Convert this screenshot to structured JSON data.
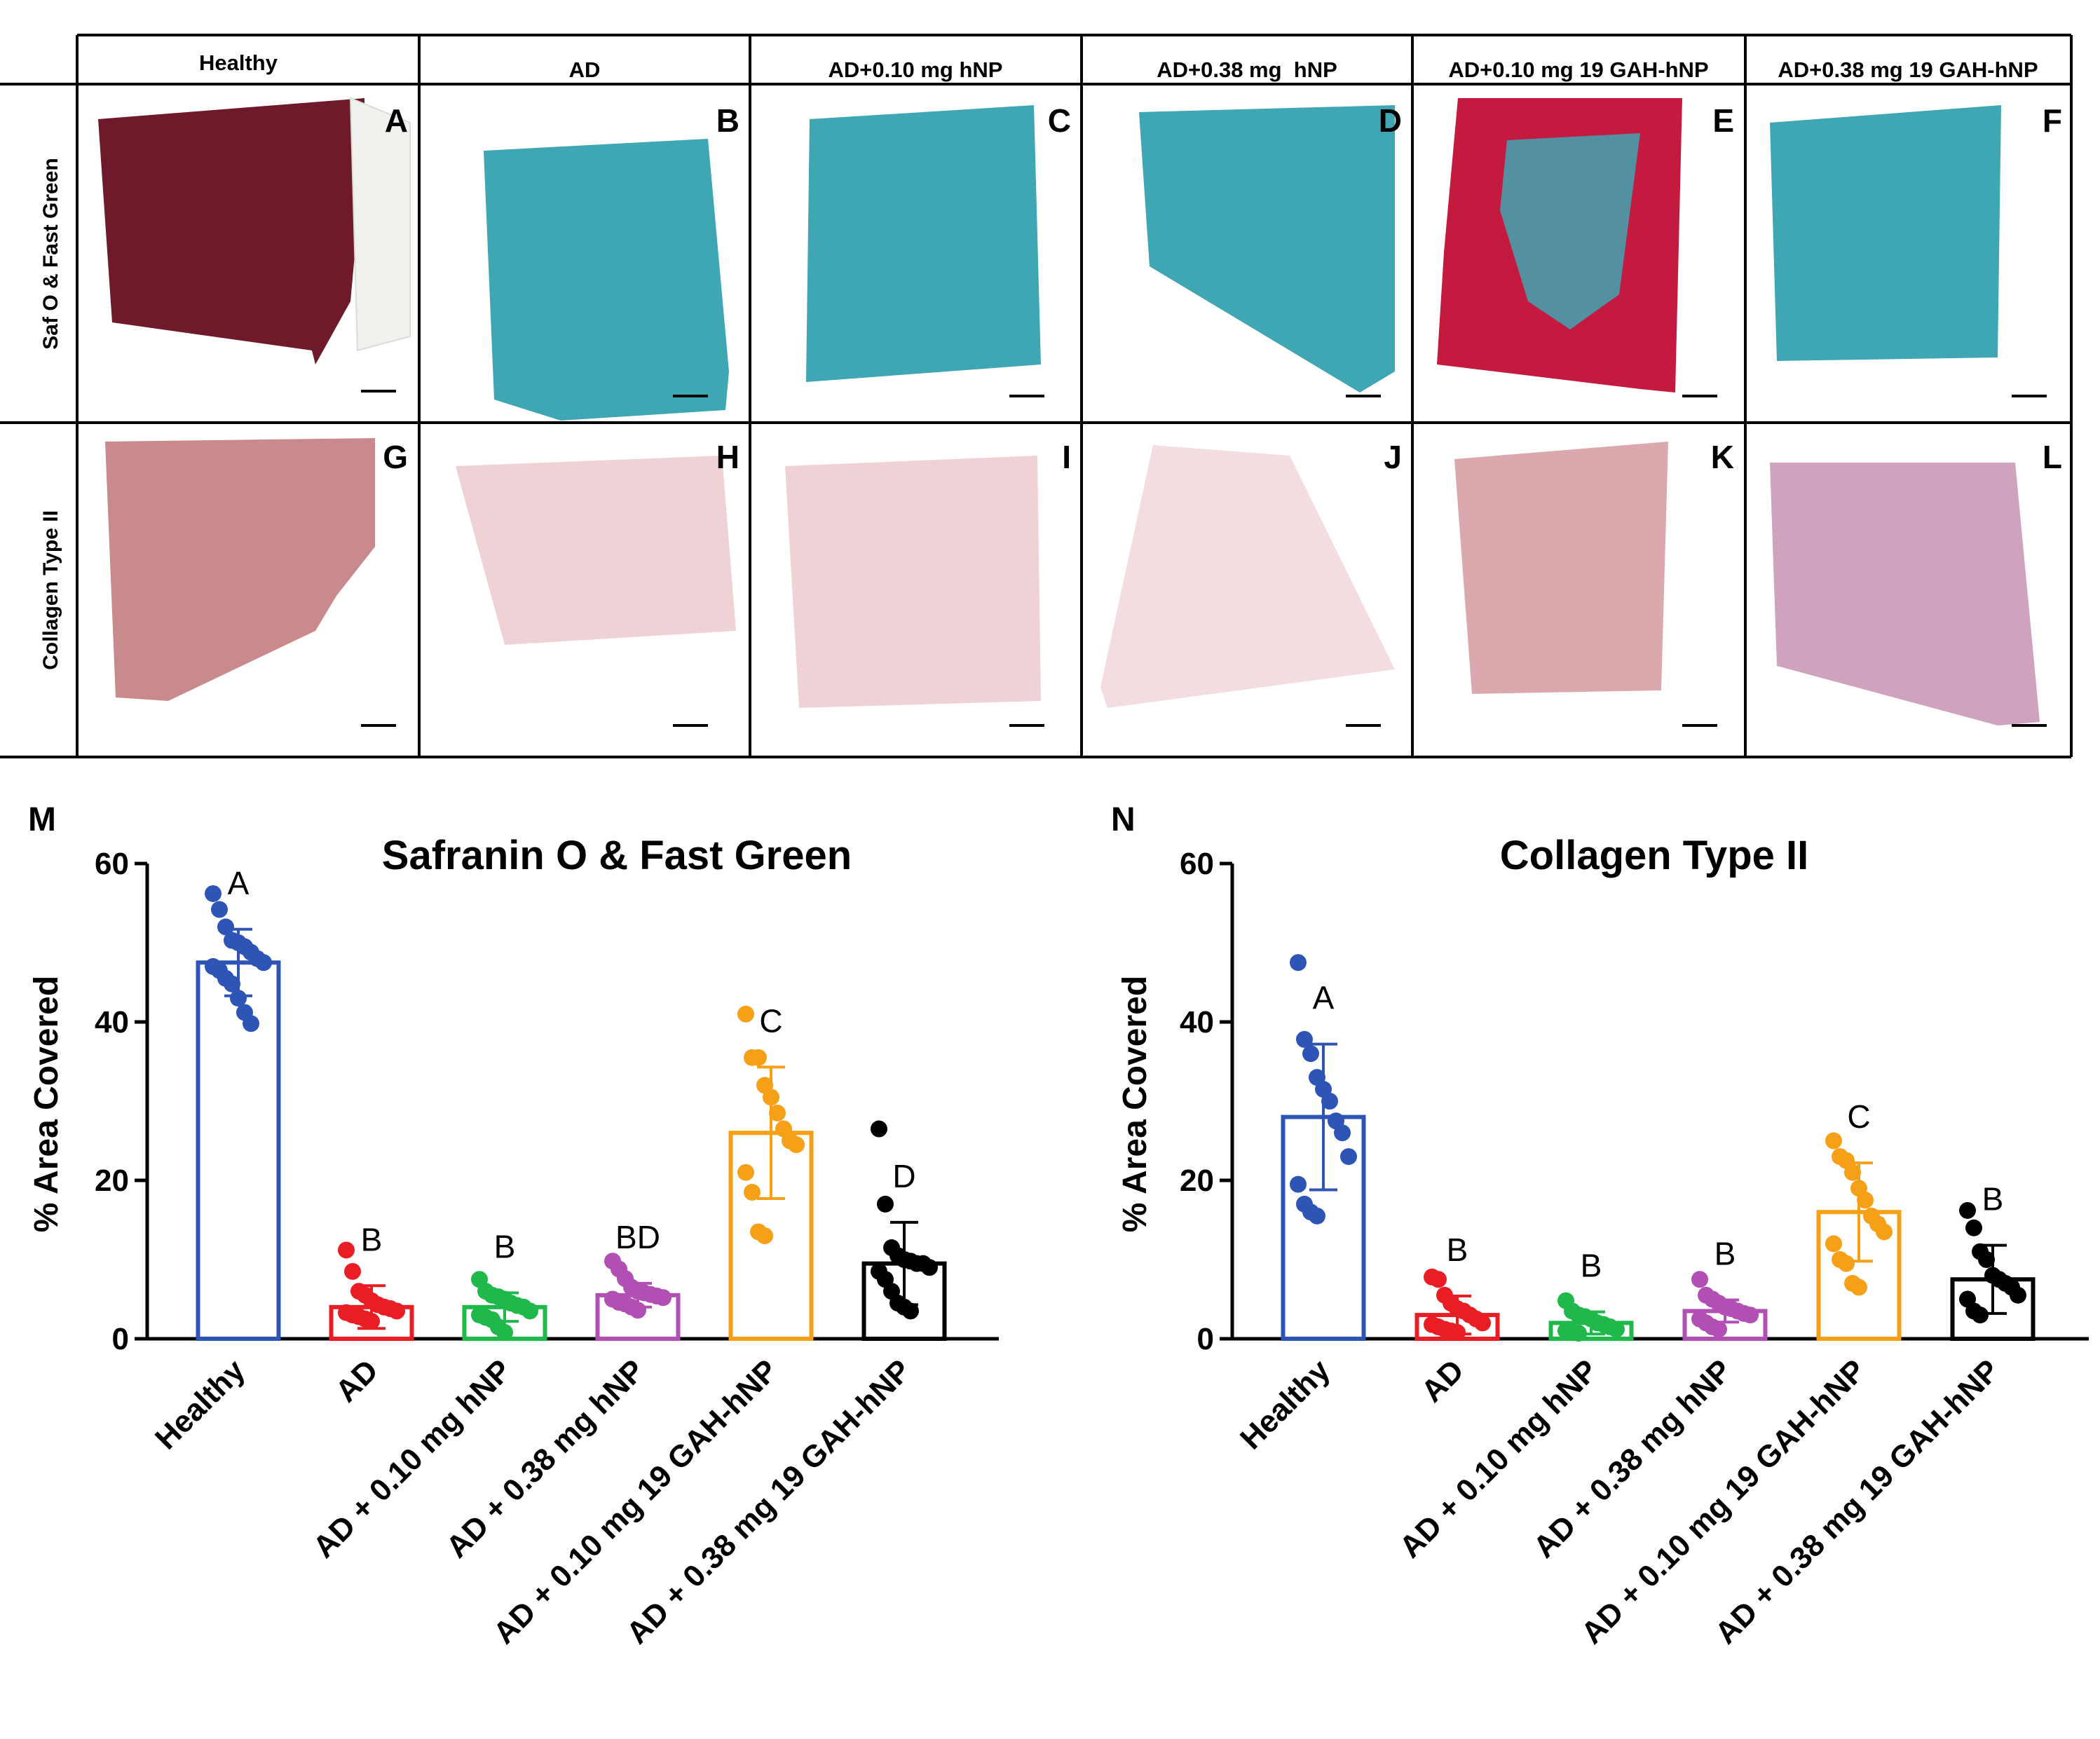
{
  "grid": {
    "column_headers": [
      "Healthy",
      "AD",
      "AD+0.10 mg hNP",
      "AD+0.38 mg  hNP",
      "AD+0.10 mg 19 GAH-hNP",
      "AD+0.38 mg 19 GAH-hNP"
    ],
    "row_labels": [
      "Saf O & Fast Green",
      "Collagen Type II"
    ],
    "panel_letters": [
      [
        "A",
        "B",
        "C",
        "D",
        "E",
        "F"
      ],
      [
        "G",
        "H",
        "I",
        "J",
        "K",
        "L"
      ]
    ],
    "stain_colors": {
      "saf_healthy": "#6e1a2a",
      "saf_treated": "#c41a3f",
      "fast_green": "#3fa6b3",
      "collagen_strong": "#c88a8c",
      "collagen_medium": "#dba9ad",
      "collagen_light": "#efd2d6",
      "collagen_purple": "#cfa2be"
    }
  },
  "chart_data": [
    {
      "panel": "M",
      "type": "bar",
      "title": "Safranin O & Fast Green",
      "ylabel": "% Area Covered",
      "xlabel": "",
      "ylim": [
        0,
        60
      ],
      "yticks": [
        0,
        20,
        40,
        60
      ],
      "categories": [
        "Healthy",
        "AD",
        "AD + 0.10 mg hNP",
        "AD + 0.38 mg hNP",
        "AD + 0.10 mg 19 GAH-hNP",
        "AD + 0.38 mg 19 GAH-hNP"
      ],
      "colors": [
        "#2e55b5",
        "#ea1c24",
        "#1fb84a",
        "#b24fb5",
        "#f5a016",
        "#000000"
      ],
      "means": [
        47.5,
        4.0,
        4.0,
        5.5,
        26.0,
        9.5
      ],
      "sd": [
        4.2,
        2.7,
        1.8,
        1.5,
        8.3,
        5.2
      ],
      "letters": [
        "A",
        "B",
        "B",
        "BD",
        "C",
        "D"
      ],
      "points": [
        [
          56.2,
          54.2,
          52.0,
          50.3,
          50.0,
          49.5,
          48.8,
          48.0,
          47.5,
          47.0,
          46.5,
          45.5,
          44.8,
          43.0,
          41.2,
          39.8
        ],
        [
          11.2,
          8.5,
          6.0,
          5.5,
          4.8,
          4.3,
          4.0,
          3.8,
          3.5,
          3.3,
          3.0,
          2.8,
          2.5,
          2.2
        ],
        [
          7.5,
          6.0,
          5.5,
          5.3,
          5.0,
          4.5,
          4.2,
          4.0,
          3.5,
          3.0,
          2.7,
          2.4,
          1.5,
          0.8
        ],
        [
          9.8,
          8.8,
          7.6,
          6.5,
          6.0,
          5.8,
          5.6,
          5.4,
          5.2,
          5.0,
          4.6,
          4.4,
          4.0,
          3.6
        ],
        [
          41.0,
          35.5,
          35.5,
          32.0,
          30.5,
          28.5,
          26.5,
          25.0,
          24.5,
          21.0,
          18.5,
          13.5,
          13.0
        ],
        [
          26.5,
          17.0,
          11.5,
          10.5,
          10.0,
          9.8,
          9.5,
          9.5,
          9.0,
          8.5,
          7.5,
          6.0,
          4.5,
          4.0,
          3.5
        ]
      ]
    },
    {
      "panel": "N",
      "type": "bar",
      "title": "Collagen Type II",
      "ylabel": "% Area Covered",
      "xlabel": "",
      "ylim": [
        0,
        60
      ],
      "yticks": [
        0,
        20,
        40,
        60
      ],
      "categories": [
        "Healthy",
        "AD",
        "AD + 0.10 mg hNP",
        "AD + 0.38 mg hNP",
        "AD + 0.10 mg 19 GAH-hNP",
        "AD + 0.38 mg 19 GAH-hNP"
      ],
      "colors": [
        "#2e55b5",
        "#ea1c24",
        "#1fb84a",
        "#b24fb5",
        "#f5a016",
        "#000000"
      ],
      "means": [
        28.0,
        3.0,
        2.0,
        3.5,
        16.0,
        7.5
      ],
      "sd": [
        9.2,
        2.4,
        1.4,
        1.4,
        6.2,
        4.3
      ],
      "letters": [
        "A",
        "B",
        "B",
        "B",
        "C",
        "B"
      ],
      "points": [
        [
          47.5,
          37.8,
          36.0,
          33.0,
          31.5,
          30.0,
          27.5,
          26.0,
          23.0,
          19.5,
          17.0,
          16.0,
          15.5
        ],
        [
          7.8,
          7.5,
          5.5,
          4.5,
          3.8,
          3.5,
          3.0,
          2.5,
          2.0,
          1.8,
          1.5,
          1.2,
          1.0,
          0.8
        ],
        [
          4.8,
          3.5,
          3.0,
          2.8,
          2.5,
          2.0,
          1.8,
          1.5,
          1.2,
          1.0,
          0.8,
          0.7
        ],
        [
          7.5,
          5.5,
          5.0,
          4.5,
          4.0,
          3.8,
          3.5,
          3.2,
          3.0,
          2.5,
          2.0,
          1.5,
          1.2
        ],
        [
          25.0,
          23.0,
          22.5,
          21.0,
          19.0,
          17.5,
          15.5,
          14.5,
          13.5,
          12.0,
          10.0,
          9.5,
          7.0,
          6.5
        ],
        [
          16.2,
          14.0,
          11.0,
          10.0,
          8.0,
          7.5,
          7.0,
          6.5,
          5.5,
          5.0,
          3.5,
          3.0
        ]
      ]
    }
  ]
}
